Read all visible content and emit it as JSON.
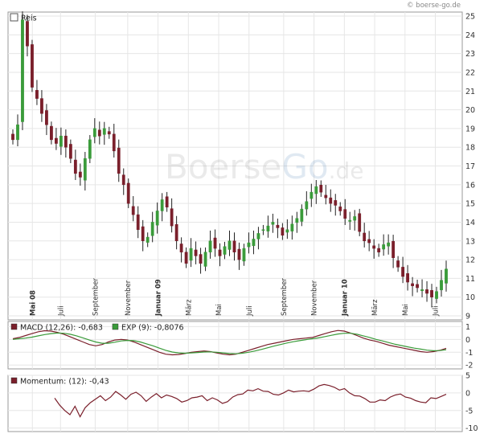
{
  "credit": "© boerse-go.de",
  "watermark": {
    "part1": "Boerse",
    "part2": "Go",
    "part3": ".de"
  },
  "colors": {
    "up": "#3a9b3a",
    "down": "#7a1f2b",
    "macd": "#7a1f2b",
    "signal": "#3a9b3a",
    "momentum": "#7a1f2b",
    "grid": "#e6e6e6",
    "frame": "#9a9a9a"
  },
  "chart_data": [
    {
      "type": "candlestick",
      "title": "Reis",
      "legend_placement": "top-left",
      "grid": true,
      "ylim": [
        9,
        25
      ],
      "yticks": [
        9,
        10,
        11,
        12,
        13,
        14,
        15,
        16,
        17,
        18,
        19,
        20,
        21,
        22,
        23,
        24,
        25
      ],
      "xlabels": [
        {
          "label": "Mai 08",
          "bold": true,
          "pos": 0.045
        },
        {
          "label": "Juli",
          "bold": false,
          "pos": 0.11
        },
        {
          "label": "September",
          "bold": false,
          "pos": 0.19
        },
        {
          "label": "November",
          "bold": false,
          "pos": 0.265
        },
        {
          "label": "Januar 09",
          "bold": true,
          "pos": 0.335
        },
        {
          "label": "März",
          "bold": false,
          "pos": 0.405
        },
        {
          "label": "Mai",
          "bold": false,
          "pos": 0.475
        },
        {
          "label": "Juli",
          "bold": false,
          "pos": 0.545
        },
        {
          "label": "September",
          "bold": false,
          "pos": 0.625
        },
        {
          "label": "November",
          "bold": false,
          "pos": 0.695
        },
        {
          "label": "Januar 10",
          "bold": true,
          "pos": 0.765
        },
        {
          "label": "März",
          "bold": false,
          "pos": 0.835
        },
        {
          "label": "Mai",
          "bold": false,
          "pos": 0.905
        },
        {
          "label": "Juli",
          "bold": false,
          "pos": 0.975
        }
      ],
      "close": [
        18.4,
        19.2,
        24.8,
        23.4,
        21.2,
        20.6,
        19.8,
        19.2,
        18.4,
        18.2,
        18.6,
        18.0,
        17.4,
        16.6,
        16.4,
        17.4,
        18.4,
        19.0,
        18.6,
        19.0,
        18.7,
        17.8,
        16.6,
        16.0,
        15.0,
        14.4,
        13.6,
        13.0,
        13.2,
        14.0,
        14.6,
        15.2,
        14.8,
        13.8,
        13.0,
        12.4,
        11.8,
        12.6,
        12.2,
        11.8,
        12.4,
        13.0,
        12.6,
        12.2,
        12.7,
        13.0,
        12.4,
        12.0,
        12.6,
        12.9,
        13.1,
        13.4,
        13.6,
        13.8,
        14.0,
        13.7,
        13.3,
        13.6,
        13.9,
        14.2,
        14.7,
        15.1,
        15.6,
        15.9,
        15.6,
        15.3,
        15.0,
        14.9,
        14.6,
        14.2,
        14.1,
        14.3,
        13.5,
        13.0,
        12.9,
        12.6,
        12.4,
        12.8,
        12.9,
        12.1,
        11.6,
        11.1,
        10.8,
        10.6,
        10.5,
        10.4,
        10.2,
        10.0,
        10.3,
        10.9,
        11.5
      ]
    },
    {
      "type": "line",
      "legend_placement": "top-left",
      "grid": true,
      "ylim": [
        -2.3,
        1.4
      ],
      "yticks": [
        -2,
        -1,
        0,
        1
      ],
      "series": [
        {
          "name": "MACD (12,26): -0,683",
          "values": [
            0.05,
            0.15,
            0.3,
            0.45,
            0.6,
            0.68,
            0.65,
            0.55,
            0.4,
            0.2,
            0.0,
            -0.2,
            -0.4,
            -0.5,
            -0.4,
            -0.2,
            -0.05,
            0.0,
            -0.05,
            -0.2,
            -0.4,
            -0.6,
            -0.8,
            -1.0,
            -1.15,
            -1.2,
            -1.18,
            -1.1,
            -1.0,
            -0.95,
            -0.9,
            -0.95,
            -1.05,
            -1.15,
            -1.2,
            -1.15,
            -1.0,
            -0.85,
            -0.7,
            -0.55,
            -0.4,
            -0.3,
            -0.2,
            -0.1,
            0.0,
            0.05,
            0.1,
            0.15,
            0.3,
            0.45,
            0.6,
            0.7,
            0.65,
            0.5,
            0.3,
            0.1,
            -0.05,
            -0.15,
            -0.3,
            -0.45,
            -0.55,
            -0.65,
            -0.75,
            -0.85,
            -0.95,
            -1.0,
            -0.95,
            -0.85,
            -0.7
          ]
        },
        {
          "name": "EXP (9): -0,8076",
          "values": [
            0.0,
            0.05,
            0.1,
            0.18,
            0.28,
            0.38,
            0.45,
            0.5,
            0.48,
            0.4,
            0.28,
            0.12,
            -0.05,
            -0.2,
            -0.3,
            -0.3,
            -0.22,
            -0.12,
            -0.08,
            -0.1,
            -0.2,
            -0.35,
            -0.5,
            -0.68,
            -0.85,
            -0.98,
            -1.05,
            -1.08,
            -1.05,
            -1.02,
            -0.98,
            -0.97,
            -1.0,
            -1.05,
            -1.1,
            -1.12,
            -1.08,
            -1.0,
            -0.9,
            -0.78,
            -0.65,
            -0.52,
            -0.4,
            -0.28,
            -0.18,
            -0.1,
            -0.02,
            0.05,
            0.12,
            0.22,
            0.32,
            0.42,
            0.48,
            0.48,
            0.4,
            0.28,
            0.15,
            0.0,
            -0.12,
            -0.25,
            -0.38,
            -0.48,
            -0.58,
            -0.68,
            -0.76,
            -0.84,
            -0.88,
            -0.87,
            -0.81
          ]
        }
      ]
    },
    {
      "type": "line",
      "legend_placement": "top-left",
      "grid": true,
      "ylim": [
        -11,
        5
      ],
      "yticks": [
        -10,
        -5,
        0,
        5
      ],
      "series": [
        {
          "name": "Momentum: (12): -0,43",
          "values": [
            -1.5,
            -3.5,
            -5.0,
            -6.2,
            -3.8,
            -6.8,
            -4.2,
            -2.8,
            -1.8,
            -0.8,
            -2.2,
            -1.2,
            0.4,
            -0.6,
            -1.8,
            -0.4,
            0.2,
            -0.8,
            -2.4,
            -1.2,
            -0.2,
            -1.4,
            -0.6,
            -1.0,
            -1.6,
            -2.6,
            -2.2,
            -1.4,
            -1.2,
            -0.8,
            -2.2,
            -1.4,
            -2.0,
            -3.0,
            -2.5,
            -1.2,
            -0.5,
            -0.3,
            0.8,
            0.6,
            1.2,
            0.5,
            0.4,
            -0.4,
            -0.6,
            0.0,
            0.8,
            0.3,
            0.5,
            0.6,
            0.4,
            1.1,
            2.0,
            2.4,
            2.1,
            1.6,
            0.8,
            1.2,
            0.0,
            -0.8,
            -0.9,
            -1.6,
            -2.6,
            -2.6,
            -2.0,
            -2.2,
            -1.2,
            -0.6,
            -0.3,
            -1.2,
            -1.5,
            -2.2,
            -2.6,
            -2.8,
            -1.4,
            -1.6,
            -1.0,
            -0.4
          ]
        }
      ]
    }
  ]
}
